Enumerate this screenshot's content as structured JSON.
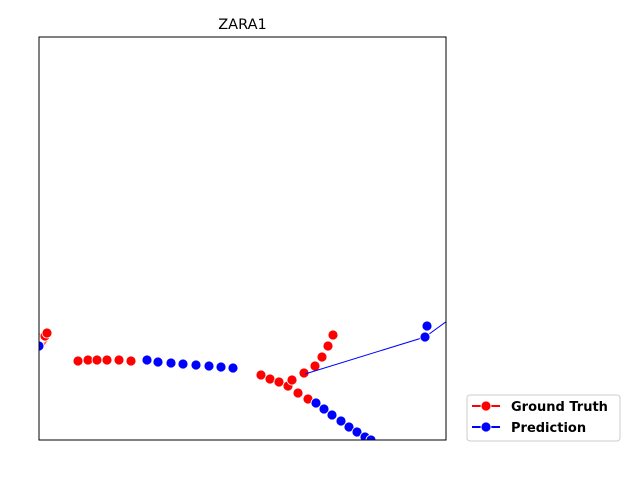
{
  "chart_data": {
    "type": "scatter",
    "title": "ZARA1",
    "xlabel": "",
    "ylabel": "",
    "axis_ticks": "none",
    "grid": false,
    "legend_placement": "lower right, outside axes",
    "colors": {
      "ground_truth": "#ff0000",
      "prediction": "#0000ff",
      "observed_history": "#ff6666"
    },
    "legend": [
      {
        "label": "Ground Truth",
        "color": "#ff0000"
      },
      {
        "label": "Prediction",
        "color": "#0000ff"
      }
    ],
    "series": [
      {
        "name": "Ground Truth",
        "group": "pedestrian-left",
        "color": "#ff0000",
        "connect": false,
        "points": [
          [
            78,
            361
          ],
          [
            88,
            360
          ],
          [
            97,
            360
          ],
          [
            107,
            360
          ],
          [
            119,
            360
          ],
          [
            131,
            361
          ]
        ]
      },
      {
        "name": "Prediction",
        "group": "pedestrian-left",
        "color": "#0000ff",
        "connect": false,
        "points": [
          [
            147,
            360
          ],
          [
            158,
            362
          ],
          [
            171,
            363
          ],
          [
            183,
            364
          ],
          [
            196,
            365
          ],
          [
            209,
            366
          ],
          [
            221,
            367
          ],
          [
            233,
            368
          ]
        ]
      },
      {
        "name": "Ground Truth",
        "group": "pedestrian-center-down",
        "color": "#ff0000",
        "connect": false,
        "points": [
          [
            261,
            375
          ],
          [
            270,
            379
          ],
          [
            279,
            382
          ],
          [
            288,
            386
          ],
          [
            298,
            393
          ],
          [
            308,
            399
          ]
        ]
      },
      {
        "name": "Prediction",
        "group": "pedestrian-center-down",
        "color": "#0000ff",
        "connect": false,
        "points": [
          [
            316,
            403
          ],
          [
            324,
            409
          ],
          [
            332,
            415
          ],
          [
            341,
            421
          ],
          [
            349,
            427
          ],
          [
            357,
            432
          ],
          [
            365,
            437
          ],
          [
            371,
            440
          ]
        ]
      },
      {
        "name": "Ground Truth",
        "group": "pedestrian-center-up",
        "color": "#ff0000",
        "connect": false,
        "points": [
          [
            292,
            380
          ],
          [
            304,
            373
          ],
          [
            315,
            366
          ],
          [
            322,
            357
          ],
          [
            328,
            346
          ],
          [
            333,
            335
          ]
        ]
      },
      {
        "name": "Prediction",
        "group": "pedestrian-center-up",
        "color": "#0000ff",
        "connect": true,
        "points": [
          [
            305,
            374
          ],
          [
            425,
            337
          ],
          [
            447,
            321
          ]
        ]
      },
      {
        "name": "Prediction",
        "group": "pedestrian-right",
        "color": "#0000ff",
        "connect": false,
        "points": [
          [
            427,
            326
          ]
        ]
      },
      {
        "name": "Ground Truth",
        "group": "pedestrian-edge-left",
        "color": "#ff0000",
        "connect": false,
        "points": [
          [
            45,
            336
          ],
          [
            47,
            333
          ]
        ]
      },
      {
        "name": "Prediction",
        "group": "pedestrian-edge-left",
        "color": "#0000ff",
        "connect": false,
        "points": [
          [
            39,
            346
          ]
        ]
      }
    ]
  }
}
